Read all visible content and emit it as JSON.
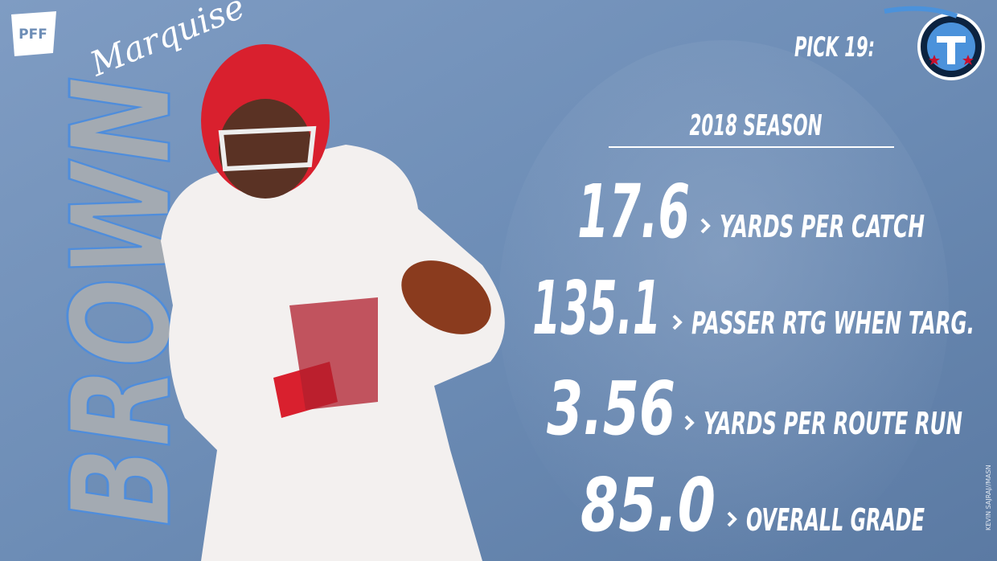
{
  "brand": "PFF",
  "player": {
    "first_name": "Marquise",
    "last_name": "BROWN"
  },
  "pick": "PICK 19:",
  "season": "2018 SEASON",
  "stats": [
    {
      "value": "17.6",
      "label": "YARDS PER CATCH"
    },
    {
      "value": "135.1",
      "label": "PASSER RTG WHEN TARG."
    },
    {
      "value": "3.56",
      "label": "YARDS PER ROUTE RUN"
    },
    {
      "value": "85.0",
      "label": "OVERALL GRADE"
    }
  ],
  "credit": "KEVIN SAJRAJ//MASN"
}
